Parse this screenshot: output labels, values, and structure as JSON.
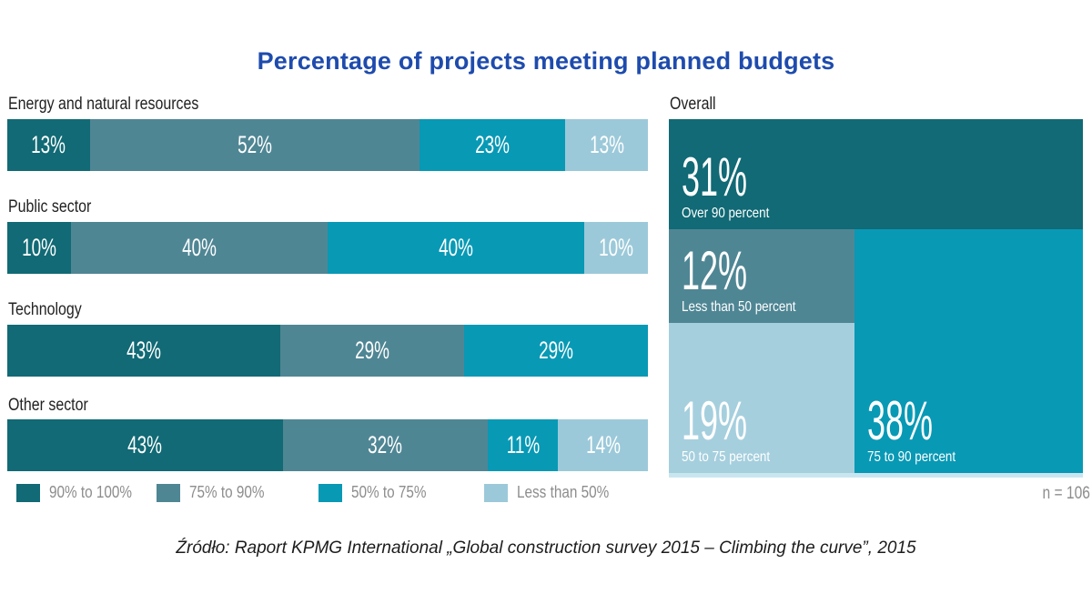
{
  "title": "Percentage of projects meeting planned budgets",
  "title_color": "#1e4bad",
  "source": "Źródło: Raport KPMG International „Global construction survey 2015 – Climbing the curve”, 2015",
  "sample_note": "n = 106",
  "colors": {
    "dark_teal": "#116a75",
    "mid_teal": "#4f8694",
    "cyan": "#0899b5",
    "light_blue": "#9cc9d9",
    "treemap_light_blue": "#a6cfde",
    "treemap_bottom_strip": "#c9e6f0",
    "title_blue": "#1e4bad",
    "legend_text_gray": "#8d8d8d"
  },
  "chart_data": [
    {
      "type": "bar",
      "subtype": "stacked-horizontal",
      "title": "Percentage of projects meeting planned budgets",
      "categories": [
        "Energy and natural resources",
        "Public sector",
        "Technology",
        "Other sector"
      ],
      "series": [
        {
          "name": "90% to 100%",
          "color": "#116a75",
          "values": [
            13,
            10,
            43,
            43
          ]
        },
        {
          "name": "75% to 90%",
          "color": "#4f8694",
          "values": [
            52,
            40,
            29,
            32
          ]
        },
        {
          "name": "50% to 75%",
          "color": "#0899b5",
          "values": [
            23,
            40,
            29,
            11
          ]
        },
        {
          "name": "Less than 50%",
          "color": "#9cc9d9",
          "values": [
            13,
            10,
            0,
            14
          ]
        }
      ],
      "value_suffix": "%",
      "legend_position": "bottom",
      "grid": false
    },
    {
      "type": "treemap",
      "title": "Overall",
      "note": "n = 106",
      "values": [
        {
          "label": "Over 90 percent",
          "value": 31,
          "color": "#116a75"
        },
        {
          "label": "Less than 50 percent",
          "value": 12,
          "color": "#4f8694"
        },
        {
          "label": "50 to 75 percent",
          "value": 19,
          "color": "#a6cfde"
        },
        {
          "label": "75 to 90 percent",
          "value": 38,
          "color": "#0899b5"
        }
      ]
    }
  ]
}
